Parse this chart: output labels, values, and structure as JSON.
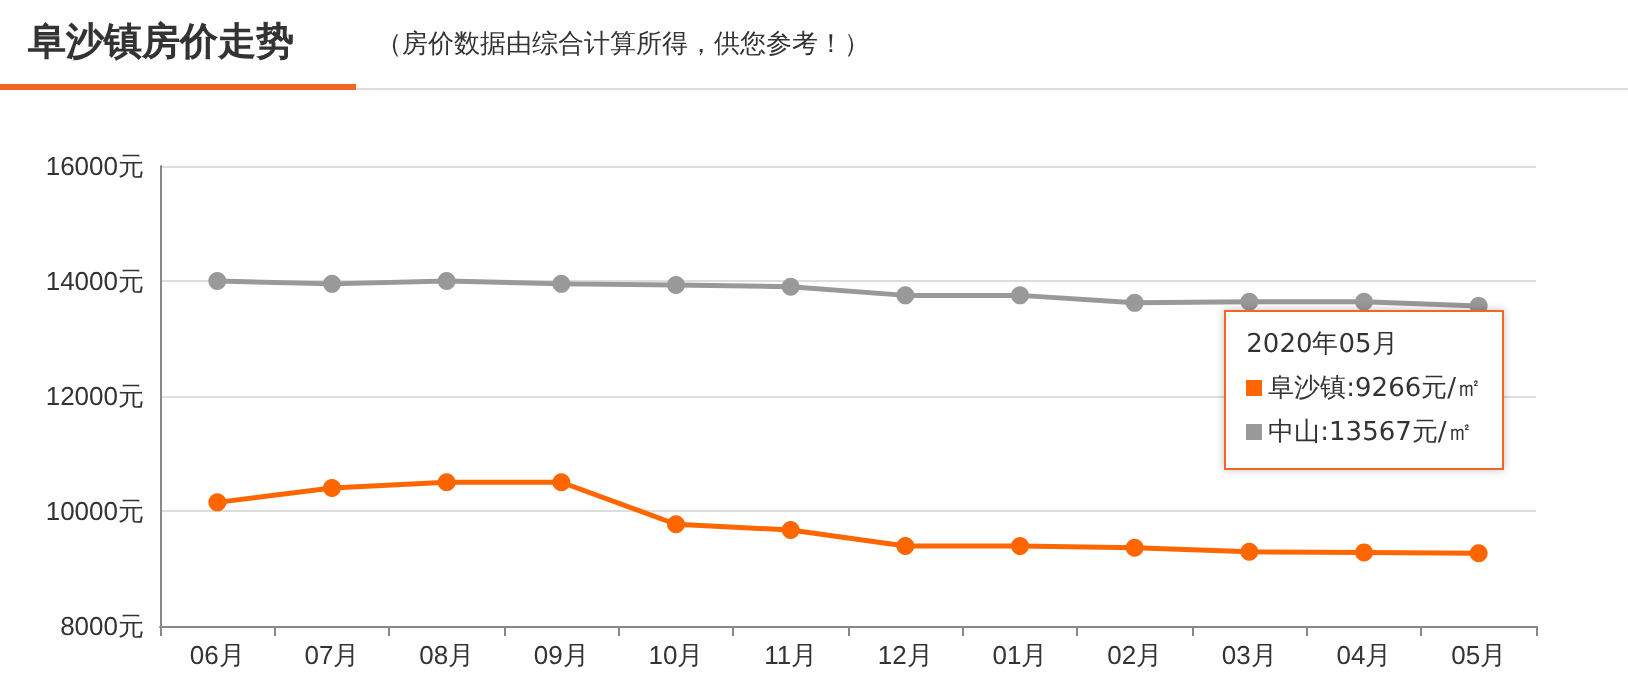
{
  "chart_data": {
    "type": "line",
    "title": "阜沙镇房价走势",
    "subtitle": "（房价数据由综合计算所得，供您参考！）",
    "categories": [
      "06月",
      "07月",
      "08月",
      "09月",
      "10月",
      "11月",
      "12月",
      "01月",
      "02月",
      "03月",
      "04月",
      "05月"
    ],
    "series": [
      {
        "name": "阜沙镇",
        "color": "#ff6600",
        "values": [
          10150,
          10400,
          10500,
          10500,
          9770,
          9670,
          9390,
          9390,
          9360,
          9290,
          9280,
          9266
        ]
      },
      {
        "name": "中山",
        "color": "#999999",
        "values": [
          14000,
          13950,
          14000,
          13950,
          13930,
          13900,
          13750,
          13750,
          13620,
          13640,
          13640,
          13567
        ]
      }
    ],
    "ylim": [
      8000,
      16000
    ],
    "yticks": [
      {
        "value": 8000,
        "label": "8000元"
      },
      {
        "value": 10000,
        "label": "10000元"
      },
      {
        "value": 12000,
        "label": "12000元"
      },
      {
        "value": 14000,
        "label": "14000元"
      },
      {
        "value": 16000,
        "label": "16000元"
      }
    ],
    "annotations": [
      "2020年05月",
      ":9266元/㎡",
      ":13567元/㎡"
    ],
    "grid": "y",
    "legend": "right",
    "marker": "circle",
    "line_style": "solid"
  }
}
